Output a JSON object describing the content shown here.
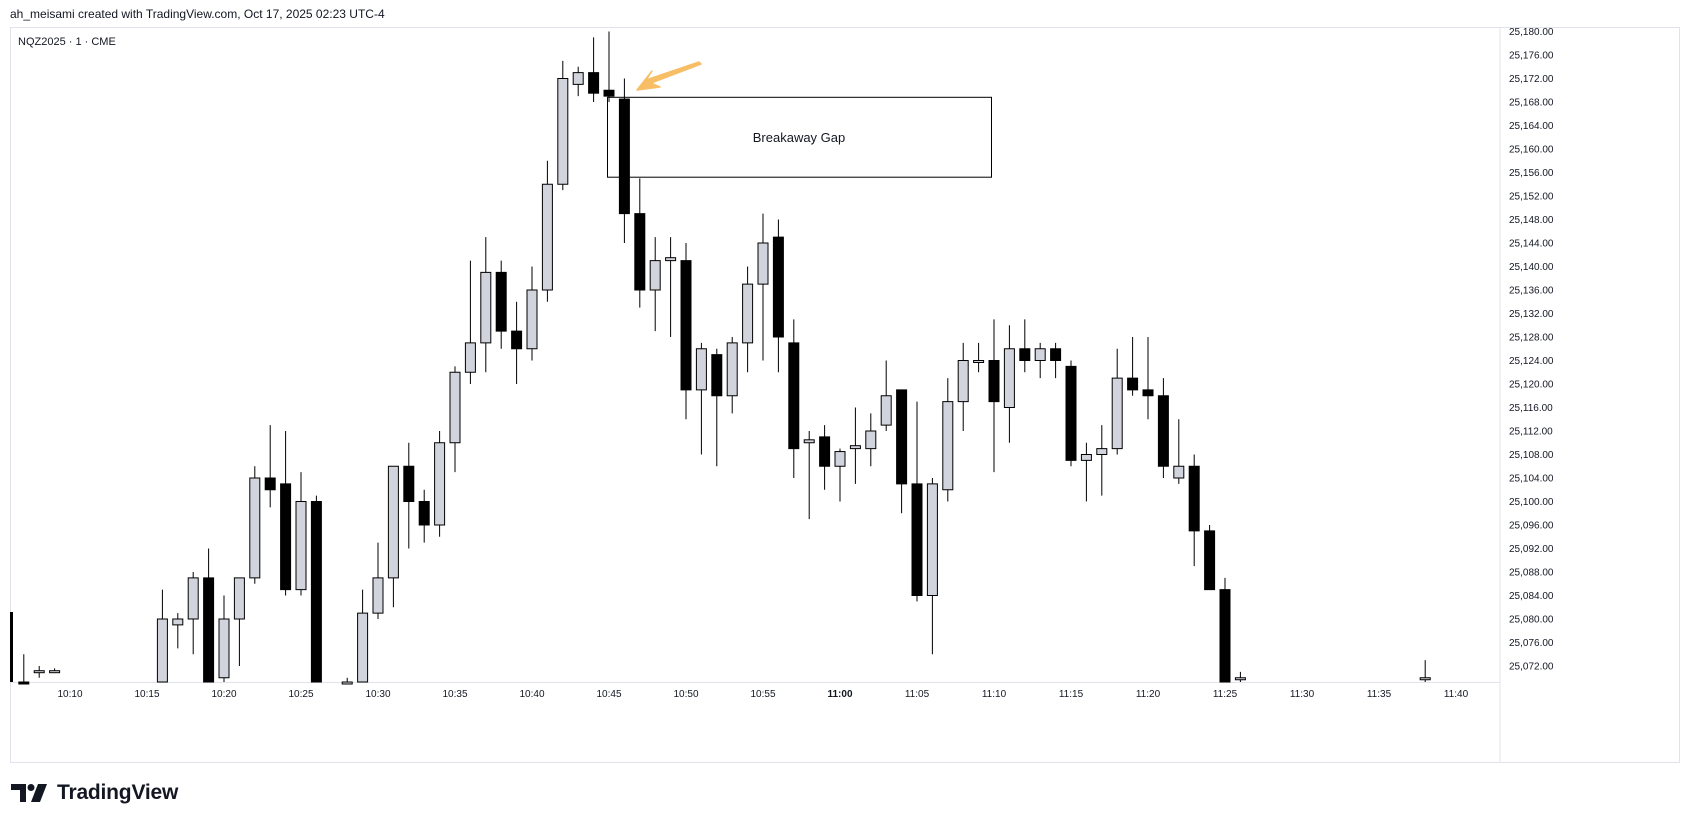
{
  "header": {
    "caption": "ah_meisami created with TradingView.com, Oct 17, 2025 02:23 UTC-4"
  },
  "symbol": {
    "label": "NQZ2025 · 1 · CME"
  },
  "footer": {
    "logo_text": "TradingView",
    "logo_icon": "tradingview-logo-icon"
  },
  "colors": {
    "up_body": "#d1d4dc",
    "down_body": "#000000",
    "wick": "#000000",
    "arrow": "#f7b756",
    "box_border": "#000000",
    "grid_border": "#e0e3eb"
  },
  "chart_data": {
    "type": "candlestick",
    "title": "",
    "timeframe": "1",
    "ylim": [
      25068,
      25182
    ],
    "y_ticks": [
      "25,072.00",
      "25,076.00",
      "25,080.00",
      "25,084.00",
      "25,088.00",
      "25,092.00",
      "25,096.00",
      "25,100.00",
      "25,104.00",
      "25,108.00",
      "25,112.00",
      "25,116.00",
      "25,120.00",
      "25,124.00",
      "25,128.00",
      "25,132.00",
      "25,136.00",
      "25,140.00",
      "25,144.00",
      "25,148.00",
      "25,152.00",
      "25,156.00",
      "25,160.00",
      "25,164.00",
      "25,168.00",
      "25,172.00",
      "25,176.00",
      "25,180.00"
    ],
    "x_ticks": [
      {
        "label": "10:10",
        "minute": 10
      },
      {
        "label": "10:15",
        "minute": 15
      },
      {
        "label": "10:20",
        "minute": 20
      },
      {
        "label": "10:25",
        "minute": 25
      },
      {
        "label": "10:30",
        "minute": 30
      },
      {
        "label": "10:35",
        "minute": 35
      },
      {
        "label": "10:40",
        "minute": 40
      },
      {
        "label": "10:45",
        "minute": 45
      },
      {
        "label": "10:50",
        "minute": 50
      },
      {
        "label": "10:55",
        "minute": 55
      },
      {
        "label": "11:00",
        "minute": 60,
        "bold": true
      },
      {
        "label": "11:05",
        "minute": 65
      },
      {
        "label": "11:10",
        "minute": 70
      },
      {
        "label": "11:15",
        "minute": 75
      },
      {
        "label": "11:20",
        "minute": 80
      },
      {
        "label": "11:25",
        "minute": 85
      },
      {
        "label": "11:30",
        "minute": 90
      },
      {
        "label": "11:35",
        "minute": 95
      },
      {
        "label": "11:40",
        "minute": 100
      }
    ],
    "candles": [
      {
        "t": "10:07",
        "o": 25068,
        "h": 25074,
        "l": 25060,
        "c": 25060
      },
      {
        "t": "10:08",
        "o": 25071.0,
        "h": 25072,
        "l": 25070.0,
        "c": 25071.2
      },
      {
        "t": "10:09",
        "o": 25071.2,
        "h": 25071.6,
        "l": 25070.8,
        "c": 25071.2
      },
      {
        "t": "10:16",
        "o": 25064,
        "h": 25085,
        "l": 25060,
        "c": 25080
      },
      {
        "t": "10:17",
        "o": 25079,
        "h": 25081,
        "l": 25075,
        "c": 25080
      },
      {
        "t": "10:18",
        "o": 25080,
        "h": 25088,
        "l": 25074,
        "c": 25087
      },
      {
        "t": "10:19",
        "o": 25087,
        "h": 25092,
        "l": 25066,
        "c": 25068
      },
      {
        "t": "10:20",
        "o": 25070,
        "h": 25084,
        "l": 25066,
        "c": 25080
      },
      {
        "t": "10:21",
        "o": 25080,
        "h": 25087,
        "l": 25072,
        "c": 25087
      },
      {
        "t": "10:22",
        "o": 25087,
        "h": 25106,
        "l": 25086,
        "c": 25104
      },
      {
        "t": "10:23",
        "o": 25104,
        "h": 25113,
        "l": 25099,
        "c": 25102
      },
      {
        "t": "10:24",
        "o": 25103,
        "h": 25112,
        "l": 25084,
        "c": 25085
      },
      {
        "t": "10:25",
        "o": 25085,
        "h": 25105,
        "l": 25084,
        "c": 25100
      },
      {
        "t": "10:26",
        "o": 25100,
        "h": 25101,
        "l": 25066,
        "c": 25066
      },
      {
        "t": "10:28",
        "o": 25066,
        "h": 25070,
        "l": 25060,
        "c": 25068
      },
      {
        "t": "10:29",
        "o": 25068,
        "h": 25085,
        "l": 25060,
        "c": 25081
      },
      {
        "t": "10:30",
        "o": 25081,
        "h": 25093,
        "l": 25080,
        "c": 25087
      },
      {
        "t": "10:31",
        "o": 25087,
        "h": 25106,
        "l": 25082,
        "c": 25106
      },
      {
        "t": "10:32",
        "o": 25106,
        "h": 25110,
        "l": 25092,
        "c": 25100
      },
      {
        "t": "10:33",
        "o": 25100,
        "h": 25102,
        "l": 25093,
        "c": 25096
      },
      {
        "t": "10:34",
        "o": 25096,
        "h": 25112,
        "l": 25094,
        "c": 25110
      },
      {
        "t": "10:35",
        "o": 25110,
        "h": 25123,
        "l": 25105,
        "c": 25122
      },
      {
        "t": "10:36",
        "o": 25122,
        "h": 25141,
        "l": 25120,
        "c": 25127
      },
      {
        "t": "10:37",
        "o": 25127,
        "h": 25145,
        "l": 25122,
        "c": 25139
      },
      {
        "t": "10:38",
        "o": 25139,
        "h": 25141,
        "l": 25126,
        "c": 25129
      },
      {
        "t": "10:39",
        "o": 25129,
        "h": 25134,
        "l": 25120,
        "c": 25126
      },
      {
        "t": "10:40",
        "o": 25126,
        "h": 25140,
        "l": 25124,
        "c": 25136
      },
      {
        "t": "10:41",
        "o": 25136,
        "h": 25158,
        "l": 25134,
        "c": 25154
      },
      {
        "t": "10:42",
        "o": 25154,
        "h": 25175,
        "l": 25153,
        "c": 25172
      },
      {
        "t": "10:43",
        "o": 25171,
        "h": 25174,
        "l": 25169,
        "c": 25173
      },
      {
        "t": "10:44",
        "o": 25173,
        "h": 25179,
        "l": 25168,
        "c": 25169.5
      },
      {
        "t": "10:45",
        "o": 25170,
        "h": 25180,
        "l": 25168,
        "c": 25169
      },
      {
        "t": "10:46",
        "o": 25168.5,
        "h": 25172,
        "l": 25144,
        "c": 25149
      },
      {
        "t": "10:47",
        "o": 25149,
        "h": 25155,
        "l": 25133,
        "c": 25136
      },
      {
        "t": "10:48",
        "o": 25136,
        "h": 25145,
        "l": 25129,
        "c": 25141
      },
      {
        "t": "10:49",
        "o": 25141,
        "h": 25145,
        "l": 25128,
        "c": 25141.5
      },
      {
        "t": "10:50",
        "o": 25141,
        "h": 25144,
        "l": 25114,
        "c": 25119
      },
      {
        "t": "10:51",
        "o": 25119,
        "h": 25127,
        "l": 25108,
        "c": 25126
      },
      {
        "t": "10:52",
        "o": 25125,
        "h": 25126,
        "l": 25106,
        "c": 25118
      },
      {
        "t": "10:53",
        "o": 25118,
        "h": 25128,
        "l": 25115,
        "c": 25127
      },
      {
        "t": "10:54",
        "o": 25127,
        "h": 25140,
        "l": 25122,
        "c": 25137
      },
      {
        "t": "10:55",
        "o": 25137,
        "h": 25149,
        "l": 25124,
        "c": 25144
      },
      {
        "t": "10:56",
        "o": 25145,
        "h": 25148,
        "l": 25122,
        "c": 25128
      },
      {
        "t": "10:57",
        "o": 25127,
        "h": 25131,
        "l": 25104,
        "c": 25109
      },
      {
        "t": "10:58",
        "o": 25110,
        "h": 25112,
        "l": 25097,
        "c": 25110.5
      },
      {
        "t": "10:59",
        "o": 25111,
        "h": 25113,
        "l": 25102,
        "c": 25106
      },
      {
        "t": "11:00",
        "o": 25106,
        "h": 25109,
        "l": 25100,
        "c": 25108.5
      },
      {
        "t": "11:01",
        "o": 25109,
        "h": 25116,
        "l": 25103,
        "c": 25109.5
      },
      {
        "t": "11:02",
        "o": 25109,
        "h": 25115,
        "l": 25106,
        "c": 25112
      },
      {
        "t": "11:03",
        "o": 25113,
        "h": 25124,
        "l": 25112,
        "c": 25118
      },
      {
        "t": "11:04",
        "o": 25119,
        "h": 25119,
        "l": 25098,
        "c": 25103
      },
      {
        "t": "11:05",
        "o": 25103,
        "h": 25117,
        "l": 25083,
        "c": 25084
      },
      {
        "t": "11:06",
        "o": 25084,
        "h": 25104,
        "l": 25074,
        "c": 25103
      },
      {
        "t": "11:07",
        "o": 25102,
        "h": 25121,
        "l": 25100,
        "c": 25117
      },
      {
        "t": "11:08",
        "o": 25117,
        "h": 25127,
        "l": 25112,
        "c": 25124
      },
      {
        "t": "11:09",
        "o": 25124,
        "h": 25127,
        "l": 25122,
        "c": 25124
      },
      {
        "t": "11:10",
        "o": 25124,
        "h": 25131,
        "l": 25105,
        "c": 25117
      },
      {
        "t": "11:11",
        "o": 25116,
        "h": 25130,
        "l": 25110,
        "c": 25126
      },
      {
        "t": "11:12",
        "o": 25126,
        "h": 25131,
        "l": 25122,
        "c": 25124
      },
      {
        "t": "11:13",
        "o": 25124,
        "h": 25127,
        "l": 25121,
        "c": 25126
      },
      {
        "t": "11:14",
        "o": 25126,
        "h": 25127,
        "l": 25121,
        "c": 25124
      },
      {
        "t": "11:15",
        "o": 25123,
        "h": 25124,
        "l": 25106,
        "c": 25107
      },
      {
        "t": "11:16",
        "o": 25107,
        "h": 25110,
        "l": 25100,
        "c": 25108
      },
      {
        "t": "11:17",
        "o": 25108,
        "h": 25113,
        "l": 25101,
        "c": 25109
      },
      {
        "t": "11:18",
        "o": 25109,
        "h": 25126,
        "l": 25108,
        "c": 25121
      },
      {
        "t": "11:19",
        "o": 25121,
        "h": 25128,
        "l": 25118,
        "c": 25119
      },
      {
        "t": "11:20",
        "o": 25119,
        "h": 25128,
        "l": 25114,
        "c": 25118
      },
      {
        "t": "11:21",
        "o": 25118,
        "h": 25121,
        "l": 25104,
        "c": 25106
      },
      {
        "t": "11:22",
        "o": 25104,
        "h": 25114,
        "l": 25103,
        "c": 25106
      },
      {
        "t": "11:23",
        "o": 25106,
        "h": 25108,
        "l": 25089,
        "c": 25095
      },
      {
        "t": "11:24",
        "o": 25095,
        "h": 25096,
        "l": 25085,
        "c": 25085
      },
      {
        "t": "11:25",
        "o": 25085,
        "h": 25087,
        "l": 25069,
        "c": 25069
      },
      {
        "t": "11:26",
        "o": 25070,
        "h": 25071,
        "l": 25069,
        "c": 25070
      },
      {
        "t": "11:38",
        "o": 25070,
        "h": 25073,
        "l": 25069,
        "c": 25070
      }
    ],
    "annotations": [
      {
        "kind": "rectangle",
        "text": "Breakaway Gap",
        "y_top": 25168.8,
        "y_bottom": 25155.2,
        "t_start": "10:45",
        "t_end": "11:10"
      },
      {
        "kind": "arrow",
        "color": "#f7b756",
        "points_to": "10:46"
      }
    ]
  }
}
